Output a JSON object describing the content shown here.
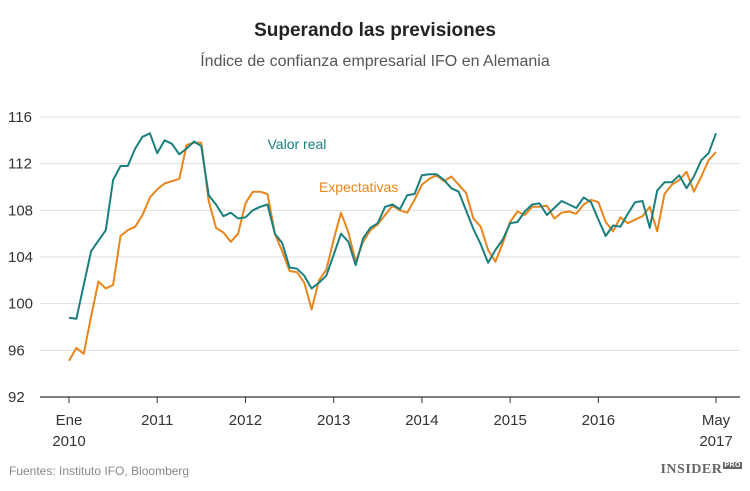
{
  "header": {
    "title": "Superando las previsiones",
    "subtitle": "Índice de confianza empresarial IFO en Alemania"
  },
  "footer": {
    "source": "Fuentes: Instituto IFO, Bloomberg",
    "logo": "INSIDER",
    "logo_badge": "PRO"
  },
  "chart_data": {
    "type": "line",
    "title": "Superando las previsiones",
    "subtitle": "Índice de confianza empresarial IFO en Alemania",
    "xlabel": "",
    "ylabel": "",
    "ylim": [
      92,
      116
    ],
    "yticks": [
      92,
      96,
      100,
      104,
      108,
      112,
      116
    ],
    "grid": true,
    "x_start": "2010-01",
    "x_end": "2017-05",
    "xtick_labels": [
      {
        "month_index": 0,
        "line1": "Ene",
        "line2": "2010"
      },
      {
        "month_index": 12,
        "line1": "2011",
        "line2": ""
      },
      {
        "month_index": 24,
        "line1": "2012",
        "line2": ""
      },
      {
        "month_index": 36,
        "line1": "2013",
        "line2": ""
      },
      {
        "month_index": 48,
        "line1": "2014",
        "line2": ""
      },
      {
        "month_index": 60,
        "line1": "2015",
        "line2": ""
      },
      {
        "month_index": 72,
        "line1": "2016",
        "line2": ""
      },
      {
        "month_index": 88,
        "line1": "May",
        "line2": "2017"
      }
    ],
    "series": [
      {
        "name": "Valor real",
        "color": "#1a7f7f",
        "label_month": 27,
        "label_value": 113.7,
        "values": [
          98.8,
          98.7,
          101.6,
          104.5,
          105.4,
          106.3,
          110.6,
          111.8,
          111.8,
          113.3,
          114.3,
          114.6,
          112.9,
          114.0,
          113.7,
          112.8,
          113.3,
          113.9,
          113.5,
          109.3,
          108.5,
          107.5,
          107.8,
          107.3,
          107.4,
          108.0,
          108.3,
          108.5,
          106.0,
          105.2,
          103.1,
          103.0,
          102.4,
          101.3,
          101.8,
          102.4,
          104.2,
          106.0,
          105.3,
          103.3,
          105.6,
          106.5,
          106.9,
          108.3,
          108.5,
          108.1,
          109.3,
          109.4,
          111.0,
          111.1,
          111.1,
          110.6,
          109.9,
          109.6,
          108.0,
          106.4,
          105.1,
          103.5,
          104.6,
          105.5,
          106.9,
          107.0,
          107.9,
          108.5,
          108.6,
          107.6,
          108.2,
          108.8,
          108.5,
          108.2,
          109.1,
          108.7,
          107.2,
          105.8,
          106.7,
          106.6,
          107.7,
          108.7,
          108.8,
          106.5,
          109.7,
          110.4,
          110.4,
          111.0,
          109.9,
          110.9,
          112.3,
          112.9,
          114.6
        ]
      },
      {
        "name": "Expectativas",
        "color": "#e8861d",
        "label_month": 34,
        "label_value": 110.0,
        "values": [
          95.1,
          96.2,
          95.7,
          98.9,
          101.9,
          101.3,
          101.6,
          105.8,
          106.3,
          106.6,
          107.6,
          109.1,
          109.8,
          110.3,
          110.5,
          110.7,
          113.6,
          113.8,
          113.8,
          108.8,
          106.5,
          106.1,
          105.3,
          106.0,
          108.6,
          109.6,
          109.6,
          109.4,
          106.0,
          104.5,
          102.8,
          102.7,
          101.8,
          99.5,
          102.0,
          102.9,
          105.5,
          107.8,
          106.1,
          103.6,
          105.3,
          106.3,
          106.8,
          107.6,
          108.4,
          108.0,
          107.8,
          108.9,
          110.2,
          110.7,
          111.0,
          110.5,
          110.9,
          110.2,
          109.5,
          107.3,
          106.6,
          104.6,
          103.6,
          105.2,
          107.0,
          107.9,
          107.6,
          108.3,
          108.3,
          108.4,
          107.3,
          107.8,
          107.9,
          107.7,
          108.5,
          108.9,
          108.7,
          107.0,
          106.2,
          107.4,
          106.9,
          107.2,
          107.5,
          108.3,
          106.2,
          109.4,
          110.2,
          110.6,
          111.3,
          109.6,
          110.9,
          112.3,
          113.0
        ]
      }
    ]
  }
}
